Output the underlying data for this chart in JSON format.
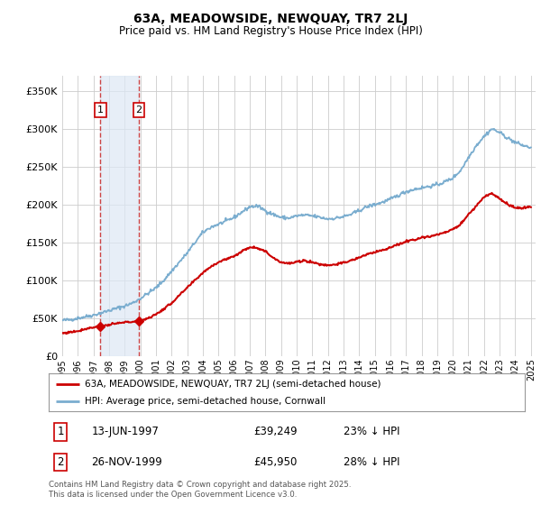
{
  "title": "63A, MEADOWSIDE, NEWQUAY, TR7 2LJ",
  "subtitle": "Price paid vs. HM Land Registry's House Price Index (HPI)",
  "ylim": [
    0,
    370000
  ],
  "yticks": [
    0,
    50000,
    100000,
    150000,
    200000,
    250000,
    300000,
    350000
  ],
  "legend_line1": "63A, MEADOWSIDE, NEWQUAY, TR7 2LJ (semi-detached house)",
  "legend_line2": "HPI: Average price, semi-detached house, Cornwall",
  "transaction1_date": 1997.45,
  "transaction1_price": 39249,
  "transaction2_date": 1999.9,
  "transaction2_price": 45950,
  "footnote": "Contains HM Land Registry data © Crown copyright and database right 2025.\nThis data is licensed under the Open Government Licence v3.0.",
  "line_color_property": "#cc0000",
  "line_color_hpi": "#7aadcf",
  "vline_color": "#cc4444",
  "bg_shade_color": "#dde8f5",
  "grid_color": "#cccccc",
  "background_color": "#ffffff",
  "hpi_years": [
    1995,
    1995.5,
    1996,
    1996.5,
    1997,
    1997.5,
    1998,
    1998.5,
    1999,
    1999.5,
    2000,
    2000.5,
    2001,
    2001.5,
    2002,
    2002.5,
    2003,
    2003.5,
    2004,
    2004.5,
    2005,
    2005.5,
    2006,
    2006.5,
    2007,
    2007.5,
    2008,
    2008.5,
    2009,
    2009.5,
    2010,
    2010.5,
    2011,
    2011.5,
    2012,
    2012.5,
    2013,
    2013.5,
    2014,
    2014.5,
    2015,
    2015.5,
    2016,
    2016.5,
    2017,
    2017.5,
    2018,
    2018.5,
    2019,
    2019.5,
    2020,
    2020.5,
    2021,
    2021.5,
    2022,
    2022.5,
    2023,
    2023.5,
    2024,
    2024.5,
    2025
  ],
  "hpi_values": [
    47000,
    48000,
    50000,
    52000,
    54000,
    57000,
    60000,
    63000,
    66000,
    70000,
    76000,
    83000,
    90000,
    100000,
    112000,
    124000,
    136000,
    150000,
    163000,
    170000,
    174000,
    178000,
    183000,
    190000,
    197000,
    198000,
    192000,
    187000,
    183000,
    182000,
    185000,
    186000,
    185000,
    183000,
    181000,
    182000,
    184000,
    187000,
    192000,
    197000,
    200000,
    203000,
    207000,
    212000,
    217000,
    220000,
    222000,
    224000,
    226000,
    230000,
    235000,
    245000,
    262000,
    278000,
    290000,
    300000,
    295000,
    288000,
    282000,
    278000,
    275000
  ],
  "prop_years": [
    1995,
    1995.5,
    1996,
    1996.5,
    1997,
    1997.45,
    1998,
    1998.5,
    1999,
    1999.9,
    2000,
    2000.5,
    2001,
    2001.5,
    2002,
    2002.5,
    2003,
    2003.5,
    2004,
    2004.5,
    2005,
    2005.5,
    2006,
    2006.5,
    2007,
    2007.5,
    2008,
    2008.5,
    2009,
    2009.5,
    2010,
    2010.5,
    2011,
    2011.5,
    2012,
    2012.5,
    2013,
    2013.5,
    2014,
    2014.5,
    2015,
    2015.5,
    2016,
    2016.5,
    2017,
    2017.5,
    2018,
    2018.5,
    2019,
    2019.5,
    2020,
    2020.5,
    2021,
    2021.5,
    2022,
    2022.5,
    2023,
    2023.5,
    2024,
    2024.5,
    2025
  ],
  "prop_values": [
    30000,
    31500,
    33000,
    36000,
    38000,
    39249,
    41000,
    43000,
    44500,
    45950,
    47000,
    50000,
    55000,
    62000,
    70000,
    80000,
    90000,
    100000,
    110000,
    118000,
    124000,
    128000,
    132000,
    138000,
    144000,
    143000,
    138000,
    130000,
    124000,
    122000,
    124000,
    126000,
    124000,
    121000,
    120000,
    121000,
    123000,
    126000,
    130000,
    134000,
    137000,
    140000,
    143000,
    147000,
    151000,
    154000,
    156000,
    158000,
    160000,
    163000,
    167000,
    174000,
    187000,
    198000,
    210000,
    215000,
    208000,
    200000,
    196000,
    195000,
    197000
  ]
}
